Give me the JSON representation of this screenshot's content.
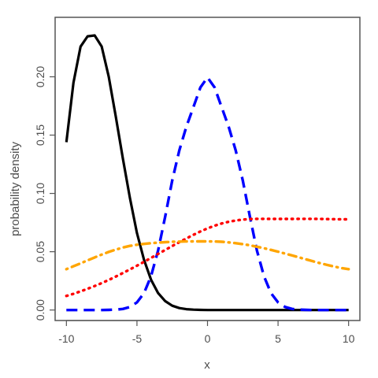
{
  "chart_data": {
    "type": "line",
    "title": "",
    "xlabel": "x",
    "ylabel": "probability density",
    "xlim": [
      -10.8,
      10.8
    ],
    "ylim": [
      -0.009,
      0.251
    ],
    "x_ticks": [
      -10,
      -5,
      0,
      5,
      10
    ],
    "x_tick_labels": [
      "-10",
      "-5",
      "0",
      "5",
      "10"
    ],
    "y_ticks": [
      0.0,
      0.05,
      0.1,
      0.15,
      0.2
    ],
    "y_tick_labels": [
      "0.00",
      "0.05",
      "0.10",
      "0.15",
      "0.20"
    ],
    "grid": false,
    "legend": "none",
    "x": [
      -10,
      -9.5,
      -9,
      -8.5,
      -8,
      -7.5,
      -7,
      -6.5,
      -6,
      -5.5,
      -5,
      -4.5,
      -4,
      -3.5,
      -3,
      -2.5,
      -2,
      -1.5,
      -1,
      -0.5,
      0,
      0.5,
      1,
      1.5,
      2,
      2.5,
      3,
      3.5,
      4,
      4.5,
      5,
      5.5,
      6,
      6.5,
      7,
      7.5,
      8,
      8.5,
      9,
      9.5,
      10
    ],
    "series": [
      {
        "style": "solid",
        "color": "#000000",
        "values": [
          0.1439,
          0.195,
          0.2259,
          0.2347,
          0.2355,
          0.226,
          0.2,
          0.166,
          0.13,
          0.096,
          0.066,
          0.043,
          0.026,
          0.0145,
          0.0076,
          0.0037,
          0.0017,
          0.0007,
          0.0003,
          0.0001,
          0.0,
          0.0,
          0.0,
          0.0,
          0.0,
          0.0,
          0.0,
          0.0,
          0.0,
          0.0,
          0.0,
          0.0,
          0.0,
          0.0,
          0.0,
          0.0,
          0.0,
          0.0,
          0.0,
          0.0,
          0.0
        ]
      },
      {
        "style": "dashed",
        "color": "#0000ff",
        "values": [
          0.0,
          0.0,
          0.0,
          0.0,
          0.0,
          0.0,
          0.0001,
          0.0003,
          0.0009,
          0.0026,
          0.0065,
          0.0145,
          0.029,
          0.0512,
          0.0802,
          0.1111,
          0.1369,
          0.1571,
          0.174,
          0.1909,
          0.1995,
          0.1909,
          0.174,
          0.1571,
          0.1369,
          0.1111,
          0.0802,
          0.0512,
          0.029,
          0.0145,
          0.0065,
          0.0026,
          0.0009,
          0.0003,
          0.0001,
          0.0,
          0.0,
          0.0,
          0.0,
          0.0,
          0.0
        ]
      },
      {
        "style": "dotted",
        "color": "#ff0000",
        "values": [
          0.0121,
          0.0139,
          0.016,
          0.0182,
          0.0206,
          0.0231,
          0.0258,
          0.0287,
          0.0317,
          0.0348,
          0.038,
          0.0413,
          0.0447,
          0.0481,
          0.0515,
          0.0549,
          0.0582,
          0.0614,
          0.0645,
          0.0674,
          0.07,
          0.0723,
          0.0742,
          0.0757,
          0.0768,
          0.0776,
          0.078,
          0.0782,
          0.0782,
          0.0781,
          0.0781,
          0.0781,
          0.0781,
          0.0782,
          0.0782,
          0.0782,
          0.0781,
          0.078,
          0.0779,
          0.0778,
          0.0778
        ]
      },
      {
        "style": "dotdash",
        "color": "#ffa500",
        "values": [
          0.035,
          0.0375,
          0.04,
          0.0426,
          0.0451,
          0.0475,
          0.0498,
          0.0518,
          0.0536,
          0.055,
          0.056,
          0.0567,
          0.0573,
          0.0578,
          0.0582,
          0.0585,
          0.0587,
          0.0588,
          0.0589,
          0.0589,
          0.0589,
          0.0588,
          0.0585,
          0.058,
          0.0573,
          0.0565,
          0.0555,
          0.0543,
          0.053,
          0.0516,
          0.05,
          0.0484,
          0.0468,
          0.0451,
          0.0434,
          0.0417,
          0.0401,
          0.0386,
          0.0372,
          0.036,
          0.035
        ]
      }
    ]
  }
}
